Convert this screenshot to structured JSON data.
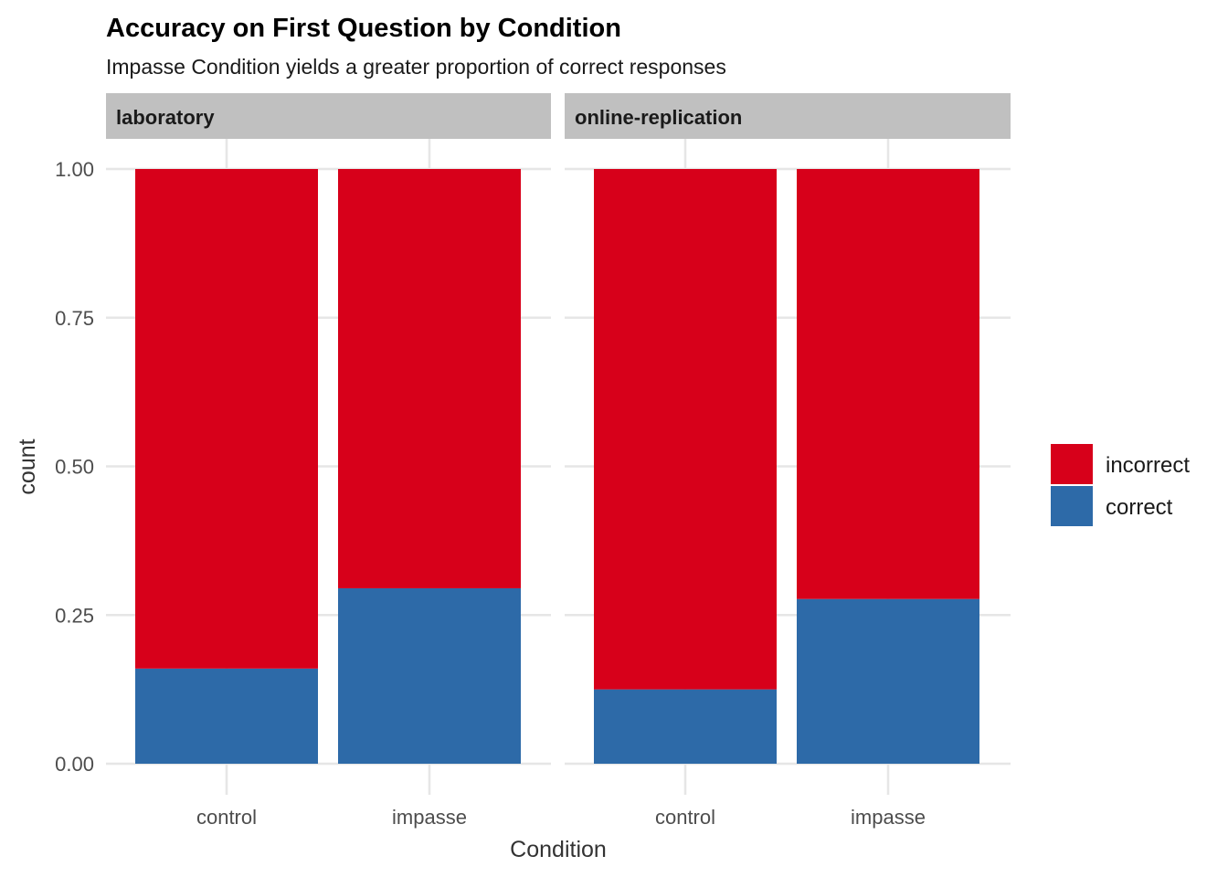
{
  "chart_data": {
    "type": "bar",
    "stacked": true,
    "title": "Accuracy on First Question by Condition",
    "subtitle": "Impasse Condition yields a greater proportion of correct responses",
    "xlabel": "Condition",
    "ylabel": "count",
    "ylim": [
      0,
      1
    ],
    "yticks": [
      "0.00",
      "0.25",
      "0.50",
      "0.75",
      "1.00"
    ],
    "ytick_values": [
      0,
      0.25,
      0.5,
      0.75,
      1.0
    ],
    "categories": [
      "control",
      "impasse"
    ],
    "grid": true,
    "legend": {
      "position": "right",
      "entries": [
        {
          "label": "incorrect",
          "color": "#D7001A"
        },
        {
          "label": "correct",
          "color": "#2D6AA8"
        }
      ]
    },
    "panels": [
      {
        "facet": "laboratory",
        "series": [
          {
            "name": "correct",
            "color": "#2D6AA8",
            "values": [
              0.16,
              0.295
            ]
          },
          {
            "name": "incorrect",
            "color": "#D7001A",
            "values": [
              0.84,
              0.705
            ]
          }
        ]
      },
      {
        "facet": "online-replication",
        "series": [
          {
            "name": "correct",
            "color": "#2D6AA8",
            "values": [
              0.125,
              0.277
            ]
          },
          {
            "name": "incorrect",
            "color": "#D7001A",
            "values": [
              0.875,
              0.723
            ]
          }
        ]
      }
    ]
  }
}
